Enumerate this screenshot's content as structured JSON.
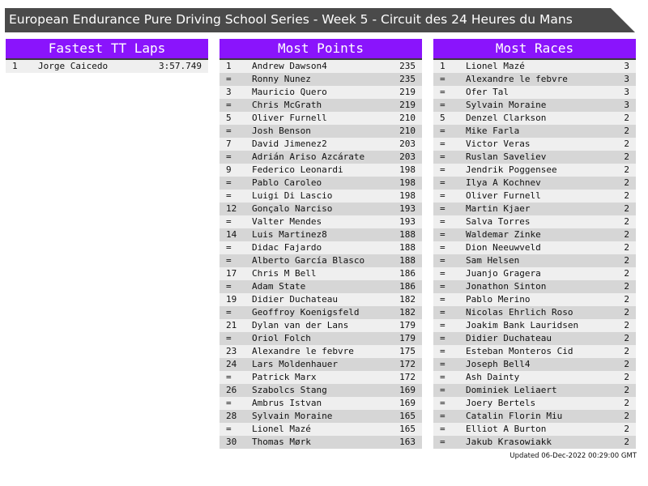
{
  "title": "European Endurance Pure Driving School Series - Week 5 - Circuit des 24 Heures du Mans",
  "accent": "#8a14fc",
  "panels": [
    {
      "title": "Fastest TT Laps",
      "rows": [
        [
          "1",
          "Jorge Caicedo",
          "3:57.749"
        ]
      ]
    },
    {
      "title": "Most Points",
      "rows": [
        [
          "1",
          "Andrew Dawson4",
          "235"
        ],
        [
          "=",
          "Ronny Nunez",
          "235"
        ],
        [
          "3",
          "Mauricio Quero",
          "219"
        ],
        [
          "=",
          "Chris McGrath",
          "219"
        ],
        [
          "5",
          "Oliver Furnell",
          "210"
        ],
        [
          "=",
          "Josh Benson",
          "210"
        ],
        [
          "7",
          "David Jimenez2",
          "203"
        ],
        [
          "=",
          "Adrián Ariso Azcárate",
          "203"
        ],
        [
          "9",
          "Federico Leonardi",
          "198"
        ],
        [
          "=",
          "Pablo Caroleo",
          "198"
        ],
        [
          "=",
          "Luigi Di Lascio",
          "198"
        ],
        [
          "12",
          "Gonçalo Narciso",
          "193"
        ],
        [
          "=",
          "Valter Mendes",
          "193"
        ],
        [
          "14",
          "Luis Martinez8",
          "188"
        ],
        [
          "=",
          "Didac Fajardo",
          "188"
        ],
        [
          "=",
          "Alberto García Blasco",
          "188"
        ],
        [
          "17",
          "Chris M Bell",
          "186"
        ],
        [
          "=",
          "Adam State",
          "186"
        ],
        [
          "19",
          "Didier Duchateau",
          "182"
        ],
        [
          "=",
          "Geoffroy Koenigsfeld",
          "182"
        ],
        [
          "21",
          "Dylan van der Lans",
          "179"
        ],
        [
          "=",
          "Oriol Folch",
          "179"
        ],
        [
          "23",
          "Alexandre le febvre",
          "175"
        ],
        [
          "24",
          "Lars Moldenhauer",
          "172"
        ],
        [
          "=",
          "Patrick Marx",
          "172"
        ],
        [
          "26",
          "Szabolcs Stang",
          "169"
        ],
        [
          "=",
          "Ambrus Istvan",
          "169"
        ],
        [
          "28",
          "Sylvain Moraine",
          "165"
        ],
        [
          "=",
          "Lionel Mazé",
          "165"
        ],
        [
          "30",
          "Thomas Mørk",
          "163"
        ]
      ]
    },
    {
      "title": "Most Races",
      "rows": [
        [
          "1",
          "Lionel Mazé",
          "3"
        ],
        [
          "=",
          "Alexandre le febvre",
          "3"
        ],
        [
          "=",
          "Ofer Tal",
          "3"
        ],
        [
          "=",
          "Sylvain Moraine",
          "3"
        ],
        [
          "5",
          "Denzel Clarkson",
          "2"
        ],
        [
          "=",
          "Mike Farla",
          "2"
        ],
        [
          "=",
          "Victor Veras",
          "2"
        ],
        [
          "=",
          "Ruslan Saveliev",
          "2"
        ],
        [
          "=",
          "Jendrik Poggensee",
          "2"
        ],
        [
          "=",
          "Ilya A Kochnev",
          "2"
        ],
        [
          "=",
          "Oliver Furnell",
          "2"
        ],
        [
          "=",
          "Martin Kjaer",
          "2"
        ],
        [
          "=",
          "Salva Torres",
          "2"
        ],
        [
          "=",
          "Waldemar Zinke",
          "2"
        ],
        [
          "=",
          "Dion Neeuwveld",
          "2"
        ],
        [
          "=",
          "Sam Helsen",
          "2"
        ],
        [
          "=",
          "Juanjo Gragera",
          "2"
        ],
        [
          "=",
          "Jonathon Sinton",
          "2"
        ],
        [
          "=",
          "Pablo Merino",
          "2"
        ],
        [
          "=",
          "Nicolas Ehrlich Roso",
          "2"
        ],
        [
          "=",
          "Joakim Bank Lauridsen",
          "2"
        ],
        [
          "=",
          "Didier Duchateau",
          "2"
        ],
        [
          "=",
          "Esteban Monteros Cid",
          "2"
        ],
        [
          "=",
          "Joseph Bell4",
          "2"
        ],
        [
          "=",
          "Ash Dainty",
          "2"
        ],
        [
          "=",
          "Dominiek Leliaert",
          "2"
        ],
        [
          "=",
          "Joery Bertels",
          "2"
        ],
        [
          "=",
          "Catalin Florin Miu",
          "2"
        ],
        [
          "=",
          "Elliot A Burton",
          "2"
        ],
        [
          "=",
          "Jakub Krasowiakk",
          "2"
        ]
      ]
    }
  ],
  "updated": "Updated 06-Dec-2022 00:29:00 GMT"
}
